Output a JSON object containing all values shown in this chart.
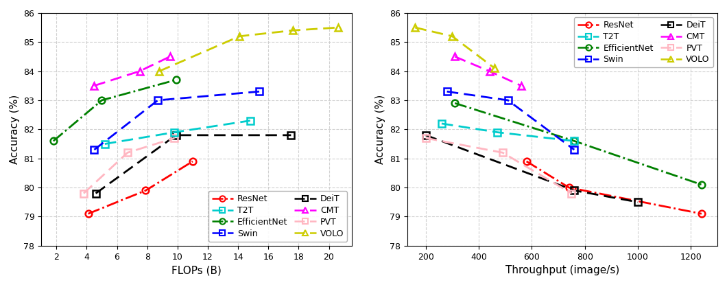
{
  "left_chart": {
    "xlabel": "FLOPs (B)",
    "ylabel": "Accuracy (%)",
    "xlim": [
      1,
      21.5
    ],
    "ylim": [
      78,
      86
    ],
    "yticks": [
      78,
      79,
      80,
      81,
      82,
      83,
      84,
      85,
      86
    ],
    "xticks": [
      2,
      4,
      6,
      8,
      10,
      12,
      14,
      16,
      18,
      20
    ],
    "series": {
      "ResNet": {
        "color": "#ff0000",
        "marker": "o",
        "linestyle": "-.",
        "x": [
          4.1,
          7.9,
          11.0
        ],
        "y": [
          79.1,
          79.9,
          80.9
        ]
      },
      "EfficientNet": {
        "color": "#008000",
        "marker": "o",
        "linestyle": "-.",
        "x": [
          1.8,
          5.0,
          9.9
        ],
        "y": [
          81.6,
          83.0,
          83.7
        ]
      },
      "DeiT": {
        "color": "#000000",
        "marker": "s",
        "linestyle": "--",
        "x": [
          4.6,
          9.9,
          17.5
        ],
        "y": [
          79.8,
          81.8,
          81.8
        ]
      },
      "PVT": {
        "color": "#ffb6c1",
        "marker": "s",
        "linestyle": "--",
        "x": [
          3.8,
          6.7,
          9.8
        ],
        "y": [
          79.8,
          81.2,
          81.7
        ]
      },
      "T2T": {
        "color": "#00cccc",
        "marker": "s",
        "linestyle": "--",
        "x": [
          5.2,
          9.8,
          14.8
        ],
        "y": [
          81.5,
          81.9,
          82.3
        ]
      },
      "Swin": {
        "color": "#0000ff",
        "marker": "s",
        "linestyle": "--",
        "x": [
          4.5,
          8.7,
          15.4
        ],
        "y": [
          81.3,
          83.0,
          83.3
        ]
      },
      "CMT": {
        "color": "#ff00ff",
        "marker": "^",
        "linestyle": "--",
        "x": [
          4.5,
          7.5,
          9.5
        ],
        "y": [
          83.5,
          84.0,
          84.5
        ]
      },
      "VOLO": {
        "color": "#cccc00",
        "marker": "^",
        "linestyle": "--",
        "x": [
          8.8,
          14.1,
          17.6,
          20.6
        ],
        "y": [
          84.0,
          85.2,
          85.4,
          85.5
        ]
      }
    },
    "legend_loc": "lower right"
  },
  "right_chart": {
    "xlabel": "Throughput (image/s)",
    "ylabel": "Accuracy (%)",
    "xlim": [
      130,
      1300
    ],
    "ylim": [
      78,
      86
    ],
    "yticks": [
      78,
      79,
      80,
      81,
      82,
      83,
      84,
      85,
      86
    ],
    "xticks": [
      200,
      400,
      600,
      800,
      1000,
      1200
    ],
    "series": {
      "ResNet": {
        "color": "#ff0000",
        "marker": "o",
        "linestyle": "-.",
        "x": [
          580,
          740,
          1240
        ],
        "y": [
          80.9,
          80.0,
          79.1
        ]
      },
      "EfficientNet": {
        "color": "#008000",
        "marker": "o",
        "linestyle": "-.",
        "x": [
          310,
          760,
          1240
        ],
        "y": [
          82.9,
          81.6,
          80.1
        ]
      },
      "DeiT": {
        "color": "#000000",
        "marker": "s",
        "linestyle": "--",
        "x": [
          200,
          760,
          1000
        ],
        "y": [
          81.8,
          79.9,
          79.5
        ]
      },
      "PVT": {
        "color": "#ffb6c1",
        "marker": "s",
        "linestyle": "--",
        "x": [
          200,
          490,
          750
        ],
        "y": [
          81.7,
          81.2,
          79.8
        ]
      },
      "T2T": {
        "color": "#00cccc",
        "marker": "s",
        "linestyle": "--",
        "x": [
          260,
          470,
          760
        ],
        "y": [
          82.2,
          81.9,
          81.6
        ]
      },
      "Swin": {
        "color": "#0000ff",
        "marker": "s",
        "linestyle": "--",
        "x": [
          280,
          510,
          760
        ],
        "y": [
          83.3,
          83.0,
          81.3
        ]
      },
      "CMT": {
        "color": "#ff00ff",
        "marker": "^",
        "linestyle": "--",
        "x": [
          310,
          440,
          560
        ],
        "y": [
          84.5,
          84.0,
          83.5
        ]
      },
      "VOLO": {
        "color": "#cccc00",
        "marker": "^",
        "linestyle": "--",
        "x": [
          160,
          300,
          460
        ],
        "y": [
          85.5,
          85.2,
          84.1
        ]
      }
    },
    "legend_loc": "upper right"
  },
  "col1_names": [
    "ResNet",
    "EfficientNet",
    "DeiT",
    "PVT"
  ],
  "col2_names": [
    "T2T",
    "Swin",
    "CMT",
    "VOLO"
  ],
  "background_color": "#ffffff",
  "grid_color": "#cccccc"
}
